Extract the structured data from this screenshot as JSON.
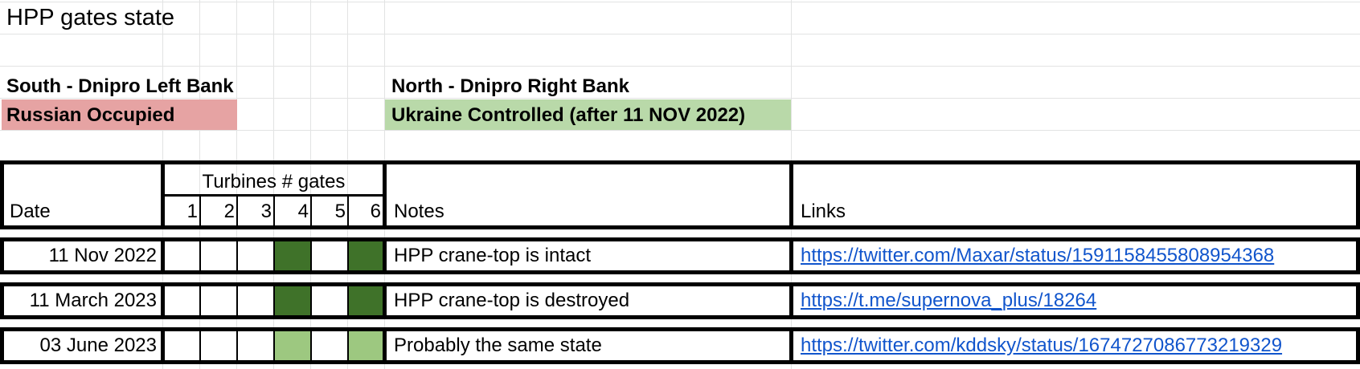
{
  "title": "HPP gates state",
  "south": {
    "heading": "South - Dnipro Left Bank",
    "status": "Russian Occupied",
    "status_color": "#e6a3a3"
  },
  "north": {
    "heading": "North - Dnipro Right Bank",
    "status": "Ukraine Controlled (after 11 NOV 2022)",
    "status_color": "#b9d9a9"
  },
  "header": {
    "date": "Date",
    "turbines": "Turbines # gates",
    "gate_numbers": [
      "1",
      "2",
      "3",
      "4",
      "5",
      "6"
    ],
    "notes": "Notes",
    "links": "Links"
  },
  "colors": {
    "gate_open_dark": "#3f7229",
    "gate_open_light": "#9dc880",
    "link": "#1155cc"
  },
  "rows": [
    {
      "date": "11 Nov 2022",
      "gates": [
        "",
        "",
        "",
        "dark",
        "",
        "dark"
      ],
      "note": "HPP crane-top is intact",
      "link": "https://twitter.com/Maxar/status/1591158455808954368"
    },
    {
      "date": "11 March 2023",
      "gates": [
        "",
        "",
        "",
        "dark",
        "",
        "dark"
      ],
      "note": "HPP crane-top is destroyed",
      "link": "https://t.me/supernova_plus/18264"
    },
    {
      "date": "03 June 2023",
      "gates": [
        "",
        "",
        "",
        "light",
        "",
        "light"
      ],
      "note": "Probably the same state",
      "link": "https://twitter.com/kddsky/status/1674727086773219329"
    }
  ]
}
